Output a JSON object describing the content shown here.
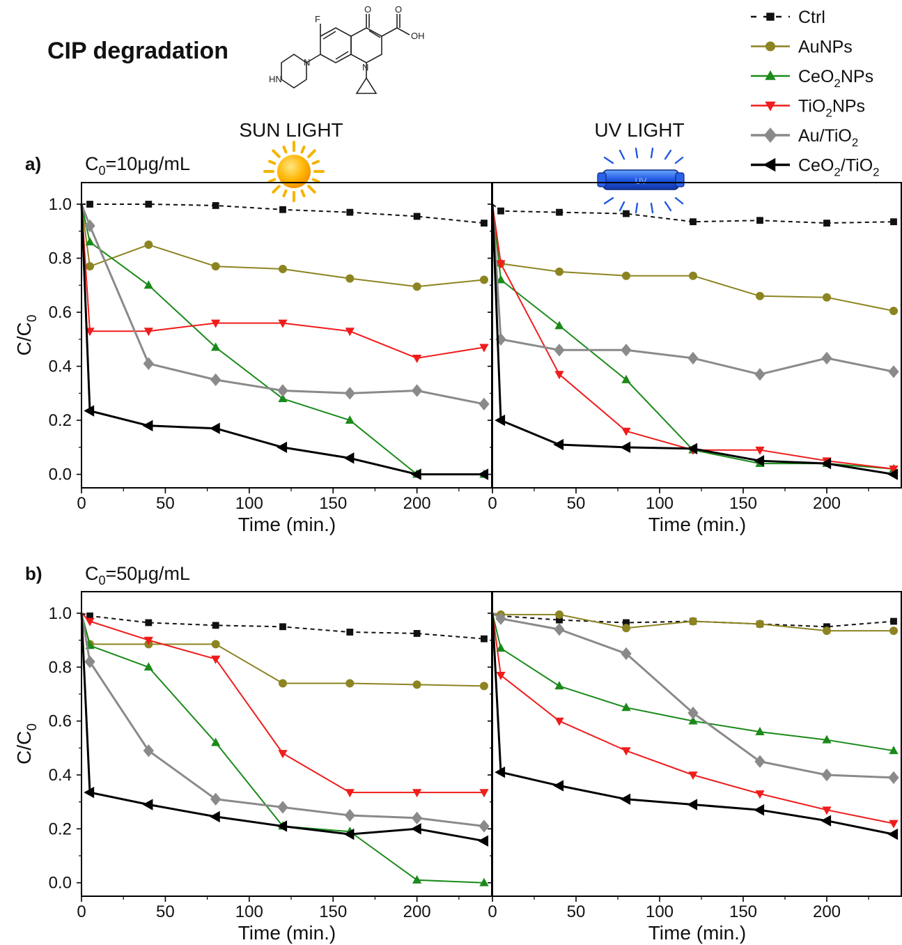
{
  "figure": {
    "title": "CIP degradation",
    "panel_a_label": "a)",
    "panel_b_label": "b)",
    "sun_light_label": "SUN LIGHT",
    "uv_light_label": "UV LIGHT",
    "uv_lamp_text": "UV",
    "molecule": {
      "f": "F",
      "o": "O",
      "oh": "OH",
      "n": "N",
      "hn": "HN"
    }
  },
  "legend": [
    {
      "name": "Ctrl",
      "color": "#111111",
      "marker": "square",
      "dashed": true
    },
    {
      "name": "AuNPs",
      "color": "#8c8421",
      "marker": "circle",
      "dashed": false
    },
    {
      "name": "CeO2NPs",
      "color": "#1a8a1a",
      "marker": "triangle-up",
      "dashed": false
    },
    {
      "name": "TiO2NPs",
      "color": "#f01c1c",
      "marker": "triangle-down",
      "dashed": false
    },
    {
      "name": "Au/TiO2",
      "color": "#8a8a8a",
      "marker": "diamond",
      "dashed": false
    },
    {
      "name": "CeO2/TiO2",
      "color": "#000000",
      "marker": "triangle-left",
      "dashed": false
    }
  ],
  "chart_data": [
    {
      "type": "line",
      "row_label": "C0=10μg/mL",
      "title": "SUN LIGHT",
      "xlabel": "Time (min.)",
      "ylabel": "C/C0",
      "xlim": [
        0,
        245
      ],
      "ylim": [
        -0.05,
        1.08
      ],
      "xticks": [
        0,
        50,
        100,
        150,
        200
      ],
      "yticks": [
        0.0,
        0.2,
        0.4,
        0.6,
        0.8,
        1.0
      ],
      "series": [
        {
          "name": "Ctrl",
          "x": [
            0,
            5,
            40,
            80,
            120,
            160,
            200,
            240
          ],
          "y": [
            1.0,
            1.0,
            1.0,
            0.995,
            0.98,
            0.97,
            0.955,
            0.93
          ]
        },
        {
          "name": "AuNPs",
          "x": [
            0,
            5,
            40,
            80,
            120,
            160,
            200,
            240
          ],
          "y": [
            1.0,
            0.77,
            0.85,
            0.77,
            0.76,
            0.725,
            0.695,
            0.72
          ]
        },
        {
          "name": "CeO2NPs",
          "x": [
            0,
            5,
            40,
            80,
            120,
            160,
            200,
            240
          ],
          "y": [
            1.0,
            0.86,
            0.7,
            0.47,
            0.28,
            0.2,
            0.0,
            0.0
          ]
        },
        {
          "name": "TiO2NPs",
          "x": [
            0,
            5,
            40,
            80,
            120,
            160,
            200,
            240
          ],
          "y": [
            1.0,
            0.53,
            0.53,
            0.56,
            0.56,
            0.53,
            0.43,
            0.47
          ]
        },
        {
          "name": "Au/TiO2",
          "x": [
            0,
            5,
            40,
            80,
            120,
            160,
            200,
            240
          ],
          "y": [
            1.0,
            0.92,
            0.41,
            0.35,
            0.31,
            0.3,
            0.31,
            0.26
          ]
        },
        {
          "name": "CeO2/TiO2",
          "x": [
            0,
            5,
            40,
            80,
            120,
            160,
            200,
            240
          ],
          "y": [
            1.0,
            0.235,
            0.18,
            0.17,
            0.1,
            0.06,
            0.0,
            0.0
          ]
        }
      ]
    },
    {
      "type": "line",
      "row_label": "C0=10μg/mL",
      "title": "UV LIGHT",
      "xlabel": "Time (min.)",
      "ylabel": "C/C0",
      "xlim": [
        0,
        245
      ],
      "ylim": [
        -0.05,
        1.08
      ],
      "xticks": [
        0,
        50,
        100,
        150,
        200
      ],
      "yticks": [
        0.0,
        0.2,
        0.4,
        0.6,
        0.8,
        1.0
      ],
      "series": [
        {
          "name": "Ctrl",
          "x": [
            0,
            5,
            40,
            80,
            120,
            160,
            200,
            240
          ],
          "y": [
            1.0,
            0.975,
            0.97,
            0.965,
            0.935,
            0.94,
            0.93,
            0.935
          ]
        },
        {
          "name": "AuNPs",
          "x": [
            0,
            5,
            40,
            80,
            120,
            160,
            200,
            240
          ],
          "y": [
            1.0,
            0.78,
            0.75,
            0.735,
            0.735,
            0.66,
            0.655,
            0.605
          ]
        },
        {
          "name": "CeO2NPs",
          "x": [
            0,
            5,
            40,
            80,
            120,
            160,
            200,
            240
          ],
          "y": [
            1.0,
            0.72,
            0.55,
            0.35,
            0.09,
            0.04,
            0.04,
            0.02
          ]
        },
        {
          "name": "TiO2NPs",
          "x": [
            0,
            5,
            40,
            80,
            120,
            160,
            200,
            240
          ],
          "y": [
            1.0,
            0.78,
            0.37,
            0.16,
            0.09,
            0.09,
            0.05,
            0.02
          ]
        },
        {
          "name": "Au/TiO2",
          "x": [
            0,
            5,
            40,
            80,
            120,
            160,
            200,
            240
          ],
          "y": [
            1.0,
            0.5,
            0.46,
            0.46,
            0.43,
            0.37,
            0.43,
            0.38
          ]
        },
        {
          "name": "CeO2/TiO2",
          "x": [
            0,
            5,
            40,
            80,
            120,
            160,
            200,
            240
          ],
          "y": [
            1.0,
            0.2,
            0.11,
            0.1,
            0.095,
            0.05,
            0.04,
            0.0
          ]
        }
      ]
    },
    {
      "type": "line",
      "row_label": "C0=50μg/mL",
      "title": "SUN LIGHT",
      "xlabel": "Time (min.)",
      "ylabel": "C/C0",
      "xlim": [
        0,
        245
      ],
      "ylim": [
        -0.05,
        1.08
      ],
      "xticks": [
        0,
        50,
        100,
        150,
        200
      ],
      "yticks": [
        0.0,
        0.2,
        0.4,
        0.6,
        0.8,
        1.0
      ],
      "series": [
        {
          "name": "Ctrl",
          "x": [
            0,
            5,
            40,
            80,
            120,
            160,
            200,
            240
          ],
          "y": [
            1.0,
            0.99,
            0.965,
            0.955,
            0.95,
            0.93,
            0.925,
            0.905
          ]
        },
        {
          "name": "AuNPs",
          "x": [
            0,
            5,
            40,
            80,
            120,
            160,
            200,
            240
          ],
          "y": [
            1.0,
            0.885,
            0.885,
            0.885,
            0.74,
            0.74,
            0.735,
            0.73
          ]
        },
        {
          "name": "CeO2NPs",
          "x": [
            0,
            5,
            40,
            80,
            120,
            160,
            200,
            240
          ],
          "y": [
            1.0,
            0.88,
            0.8,
            0.52,
            0.21,
            0.19,
            0.01,
            0.0
          ]
        },
        {
          "name": "TiO2NPs",
          "x": [
            0,
            5,
            40,
            80,
            120,
            160,
            200,
            240
          ],
          "y": [
            1.0,
            0.97,
            0.9,
            0.83,
            0.48,
            0.335,
            0.335,
            0.335
          ]
        },
        {
          "name": "Au/TiO2",
          "x": [
            0,
            5,
            40,
            80,
            120,
            160,
            200,
            240
          ],
          "y": [
            1.0,
            0.82,
            0.49,
            0.31,
            0.28,
            0.25,
            0.24,
            0.21
          ]
        },
        {
          "name": "CeO2/TiO2",
          "x": [
            0,
            5,
            40,
            80,
            120,
            160,
            200,
            240
          ],
          "y": [
            1.0,
            0.335,
            0.29,
            0.245,
            0.21,
            0.18,
            0.2,
            0.155
          ]
        }
      ]
    },
    {
      "type": "line",
      "row_label": "C0=50μg/mL",
      "title": "UV LIGHT",
      "xlabel": "Time (min.)",
      "ylabel": "C/C0",
      "xlim": [
        0,
        245
      ],
      "ylim": [
        -0.05,
        1.08
      ],
      "xticks": [
        0,
        50,
        100,
        150,
        200
      ],
      "yticks": [
        0.0,
        0.2,
        0.4,
        0.6,
        0.8,
        1.0
      ],
      "series": [
        {
          "name": "Ctrl",
          "x": [
            0,
            5,
            40,
            80,
            120,
            160,
            200,
            240
          ],
          "y": [
            1.0,
            0.99,
            0.975,
            0.965,
            0.97,
            0.96,
            0.95,
            0.97
          ]
        },
        {
          "name": "AuNPs",
          "x": [
            0,
            5,
            40,
            80,
            120,
            160,
            200,
            240
          ],
          "y": [
            1.0,
            0.995,
            0.995,
            0.945,
            0.97,
            0.96,
            0.935,
            0.935
          ]
        },
        {
          "name": "CeO2NPs",
          "x": [
            0,
            5,
            40,
            80,
            120,
            160,
            200,
            240
          ],
          "y": [
            1.0,
            0.87,
            0.73,
            0.65,
            0.6,
            0.56,
            0.53,
            0.49
          ]
        },
        {
          "name": "TiO2NPs",
          "x": [
            0,
            5,
            40,
            80,
            120,
            160,
            200,
            240
          ],
          "y": [
            1.0,
            0.77,
            0.6,
            0.49,
            0.4,
            0.33,
            0.27,
            0.22
          ]
        },
        {
          "name": "Au/TiO2",
          "x": [
            0,
            5,
            40,
            80,
            120,
            160,
            200,
            240
          ],
          "y": [
            1.0,
            0.98,
            0.94,
            0.85,
            0.63,
            0.45,
            0.4,
            0.39
          ]
        },
        {
          "name": "CeO2/TiO2",
          "x": [
            0,
            5,
            40,
            80,
            120,
            160,
            200,
            240
          ],
          "y": [
            1.0,
            0.41,
            0.36,
            0.31,
            0.29,
            0.27,
            0.23,
            0.18
          ]
        }
      ]
    }
  ]
}
